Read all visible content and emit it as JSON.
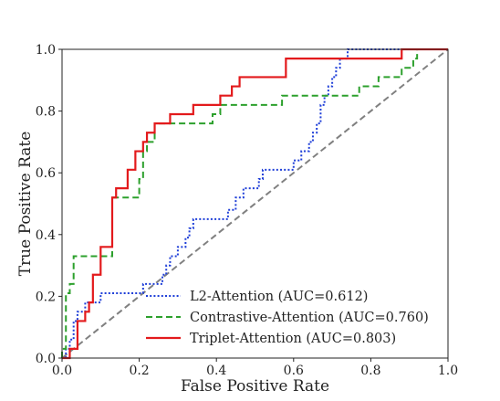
{
  "chart_data": {
    "type": "line",
    "xlabel": "False Positive Rate",
    "ylabel": "True Positive Rate",
    "xlim": [
      0.0,
      1.0
    ],
    "ylim": [
      0.0,
      1.0
    ],
    "x_ticks": [
      "0.0",
      "0.2",
      "0.4",
      "0.6",
      "0.8",
      "1.0"
    ],
    "y_ticks": [
      "0.0",
      "0.2",
      "0.4",
      "0.6",
      "0.8",
      "1.0"
    ],
    "grid": false,
    "legend_position": "lower-right",
    "series": [
      {
        "name": "L2-Attention (AUC=0.612)",
        "color": "#1f3fd8",
        "style": "dotted",
        "points": [
          [
            0.0,
            0.0
          ],
          [
            0.01,
            0.0
          ],
          [
            0.01,
            0.03
          ],
          [
            0.02,
            0.03
          ],
          [
            0.02,
            0.06
          ],
          [
            0.03,
            0.06
          ],
          [
            0.03,
            0.12
          ],
          [
            0.04,
            0.12
          ],
          [
            0.04,
            0.15
          ],
          [
            0.06,
            0.15
          ],
          [
            0.06,
            0.18
          ],
          [
            0.1,
            0.18
          ],
          [
            0.1,
            0.21
          ],
          [
            0.21,
            0.21
          ],
          [
            0.21,
            0.24
          ],
          [
            0.26,
            0.24
          ],
          [
            0.26,
            0.27
          ],
          [
            0.27,
            0.27
          ],
          [
            0.27,
            0.3
          ],
          [
            0.28,
            0.3
          ],
          [
            0.28,
            0.33
          ],
          [
            0.3,
            0.33
          ],
          [
            0.3,
            0.36
          ],
          [
            0.32,
            0.36
          ],
          [
            0.32,
            0.39
          ],
          [
            0.33,
            0.39
          ],
          [
            0.33,
            0.42
          ],
          [
            0.34,
            0.42
          ],
          [
            0.34,
            0.45
          ],
          [
            0.43,
            0.45
          ],
          [
            0.43,
            0.48
          ],
          [
            0.45,
            0.48
          ],
          [
            0.45,
            0.52
          ],
          [
            0.47,
            0.52
          ],
          [
            0.47,
            0.55
          ],
          [
            0.51,
            0.55
          ],
          [
            0.51,
            0.58
          ],
          [
            0.52,
            0.58
          ],
          [
            0.52,
            0.61
          ],
          [
            0.6,
            0.61
          ],
          [
            0.6,
            0.64
          ],
          [
            0.62,
            0.64
          ],
          [
            0.62,
            0.67
          ],
          [
            0.64,
            0.67
          ],
          [
            0.64,
            0.7
          ],
          [
            0.65,
            0.7
          ],
          [
            0.65,
            0.73
          ],
          [
            0.66,
            0.73
          ],
          [
            0.66,
            0.76
          ],
          [
            0.67,
            0.76
          ],
          [
            0.67,
            0.82
          ],
          [
            0.68,
            0.82
          ],
          [
            0.68,
            0.85
          ],
          [
            0.69,
            0.85
          ],
          [
            0.69,
            0.88
          ],
          [
            0.7,
            0.88
          ],
          [
            0.7,
            0.91
          ],
          [
            0.71,
            0.91
          ],
          [
            0.71,
            0.94
          ],
          [
            0.72,
            0.94
          ],
          [
            0.72,
            0.97
          ],
          [
            0.74,
            0.97
          ],
          [
            0.74,
            1.0
          ],
          [
            1.0,
            1.0
          ]
        ]
      },
      {
        "name": "Contrastive-Attention (AUC=0.760)",
        "color": "#2ca02c",
        "style": "dashed",
        "points": [
          [
            0.0,
            0.0
          ],
          [
            0.0,
            0.03
          ],
          [
            0.01,
            0.03
          ],
          [
            0.01,
            0.21
          ],
          [
            0.02,
            0.21
          ],
          [
            0.02,
            0.24
          ],
          [
            0.03,
            0.24
          ],
          [
            0.03,
            0.33
          ],
          [
            0.13,
            0.33
          ],
          [
            0.13,
            0.52
          ],
          [
            0.2,
            0.52
          ],
          [
            0.2,
            0.58
          ],
          [
            0.21,
            0.58
          ],
          [
            0.21,
            0.67
          ],
          [
            0.22,
            0.67
          ],
          [
            0.22,
            0.7
          ],
          [
            0.24,
            0.7
          ],
          [
            0.24,
            0.76
          ],
          [
            0.39,
            0.76
          ],
          [
            0.39,
            0.79
          ],
          [
            0.41,
            0.79
          ],
          [
            0.41,
            0.82
          ],
          [
            0.57,
            0.82
          ],
          [
            0.57,
            0.85
          ],
          [
            0.77,
            0.85
          ],
          [
            0.77,
            0.88
          ],
          [
            0.82,
            0.88
          ],
          [
            0.82,
            0.91
          ],
          [
            0.88,
            0.91
          ],
          [
            0.88,
            0.94
          ],
          [
            0.91,
            0.94
          ],
          [
            0.91,
            0.97
          ],
          [
            0.92,
            0.97
          ],
          [
            0.92,
            1.0
          ],
          [
            1.0,
            1.0
          ]
        ]
      },
      {
        "name": "Triplet-Attention (AUC=0.803)",
        "color": "#e31a1c",
        "style": "solid",
        "points": [
          [
            0.0,
            0.0
          ],
          [
            0.02,
            0.0
          ],
          [
            0.02,
            0.03
          ],
          [
            0.04,
            0.03
          ],
          [
            0.04,
            0.12
          ],
          [
            0.06,
            0.12
          ],
          [
            0.06,
            0.15
          ],
          [
            0.07,
            0.15
          ],
          [
            0.07,
            0.18
          ],
          [
            0.08,
            0.18
          ],
          [
            0.08,
            0.27
          ],
          [
            0.1,
            0.27
          ],
          [
            0.1,
            0.36
          ],
          [
            0.13,
            0.36
          ],
          [
            0.13,
            0.52
          ],
          [
            0.14,
            0.52
          ],
          [
            0.14,
            0.55
          ],
          [
            0.17,
            0.55
          ],
          [
            0.17,
            0.61
          ],
          [
            0.19,
            0.61
          ],
          [
            0.19,
            0.67
          ],
          [
            0.21,
            0.67
          ],
          [
            0.21,
            0.7
          ],
          [
            0.22,
            0.7
          ],
          [
            0.22,
            0.73
          ],
          [
            0.24,
            0.73
          ],
          [
            0.24,
            0.76
          ],
          [
            0.28,
            0.76
          ],
          [
            0.28,
            0.79
          ],
          [
            0.34,
            0.79
          ],
          [
            0.34,
            0.82
          ],
          [
            0.41,
            0.82
          ],
          [
            0.41,
            0.85
          ],
          [
            0.44,
            0.85
          ],
          [
            0.44,
            0.88
          ],
          [
            0.46,
            0.88
          ],
          [
            0.46,
            0.91
          ],
          [
            0.58,
            0.91
          ],
          [
            0.58,
            0.97
          ],
          [
            0.88,
            0.97
          ],
          [
            0.88,
            1.0
          ],
          [
            1.0,
            1.0
          ]
        ]
      },
      {
        "name": "",
        "color": "#808080",
        "style": "dashed",
        "points": [
          [
            0.0,
            0.0
          ],
          [
            1.0,
            1.0
          ]
        ]
      }
    ]
  }
}
